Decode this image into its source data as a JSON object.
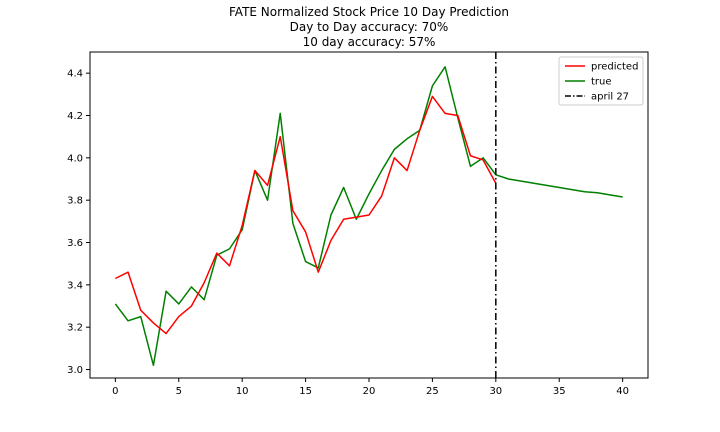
{
  "chart_data": {
    "type": "line",
    "title_lines": [
      "FATE Normalized Stock Price 10 Day Prediction",
      "Day to Day accuracy: 70%",
      "10 day accuracy: 57%"
    ],
    "xlabel": "",
    "ylabel": "",
    "xlim": [
      -2,
      42
    ],
    "ylim": [
      2.96,
      4.5
    ],
    "xticks": [
      0,
      5,
      10,
      15,
      20,
      25,
      30,
      35,
      40
    ],
    "yticks": [
      3.0,
      3.2,
      3.4,
      3.6,
      3.8,
      4.0,
      4.2,
      4.4
    ],
    "ytick_labels": [
      "3.0",
      "3.2",
      "3.4",
      "3.6",
      "3.8",
      "4.0",
      "4.2",
      "4.4"
    ],
    "grid": false,
    "legend_position": "top-right",
    "series": [
      {
        "name": "predicted",
        "color": "#ff0000",
        "x": [
          0,
          1,
          2,
          3,
          4,
          5,
          6,
          7,
          8,
          9,
          10,
          11,
          12,
          13,
          14,
          15,
          16,
          17,
          18,
          19,
          20,
          21,
          22,
          23,
          24,
          25,
          26,
          27,
          28,
          29,
          30
        ],
        "y": [
          3.43,
          3.46,
          3.28,
          3.22,
          3.17,
          3.25,
          3.3,
          3.41,
          3.55,
          3.49,
          3.68,
          3.94,
          3.87,
          4.1,
          3.75,
          3.65,
          3.46,
          3.61,
          3.71,
          3.72,
          3.73,
          3.82,
          4.0,
          3.94,
          4.13,
          4.29,
          4.21,
          4.2,
          4.01,
          3.99,
          3.88
        ]
      },
      {
        "name": "true",
        "color": "#008000",
        "x": [
          0,
          1,
          2,
          3,
          4,
          5,
          6,
          7,
          8,
          9,
          10,
          11,
          12,
          13,
          14,
          15,
          16,
          17,
          18,
          19,
          20,
          21,
          22,
          23,
          24,
          25,
          26,
          27,
          28,
          29,
          30,
          31,
          32,
          33,
          34,
          35,
          36,
          37,
          38,
          39,
          40
        ],
        "y": [
          3.31,
          3.23,
          3.25,
          3.02,
          3.37,
          3.31,
          3.39,
          3.33,
          3.54,
          3.57,
          3.66,
          3.94,
          3.8,
          4.21,
          3.69,
          3.51,
          3.48,
          3.73,
          3.86,
          3.71,
          3.83,
          3.94,
          4.04,
          4.09,
          4.13,
          4.34,
          4.43,
          4.19,
          3.96,
          4.0,
          3.92,
          3.9,
          3.89,
          3.88,
          3.87,
          3.86,
          3.85,
          3.84,
          3.835,
          3.825,
          3.815
        ]
      }
    ],
    "vlines": [
      {
        "name": "april 27",
        "x": 30,
        "color": "#000000",
        "style": "dashdot"
      }
    ]
  }
}
